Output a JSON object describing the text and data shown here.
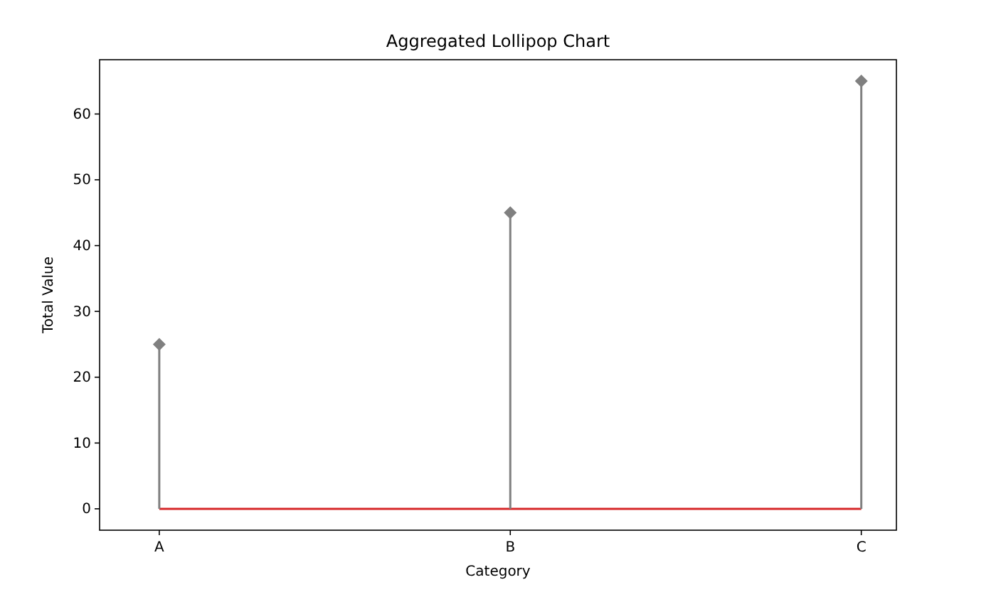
{
  "chart_data": {
    "type": "lollipop",
    "title": "Aggregated Lollipop Chart",
    "xlabel": "Category",
    "ylabel": "Total Value",
    "categories": [
      "A",
      "B",
      "C"
    ],
    "values": [
      25,
      45,
      65
    ],
    "color": "#808080",
    "marker": "diamond",
    "ylim": [
      -3.25,
      68.25
    ],
    "yticks": [
      0,
      10,
      20,
      30,
      40,
      50,
      60
    ],
    "ref_lines": [
      {
        "axis": "y",
        "value": 0,
        "color": "#d62728"
      }
    ]
  }
}
